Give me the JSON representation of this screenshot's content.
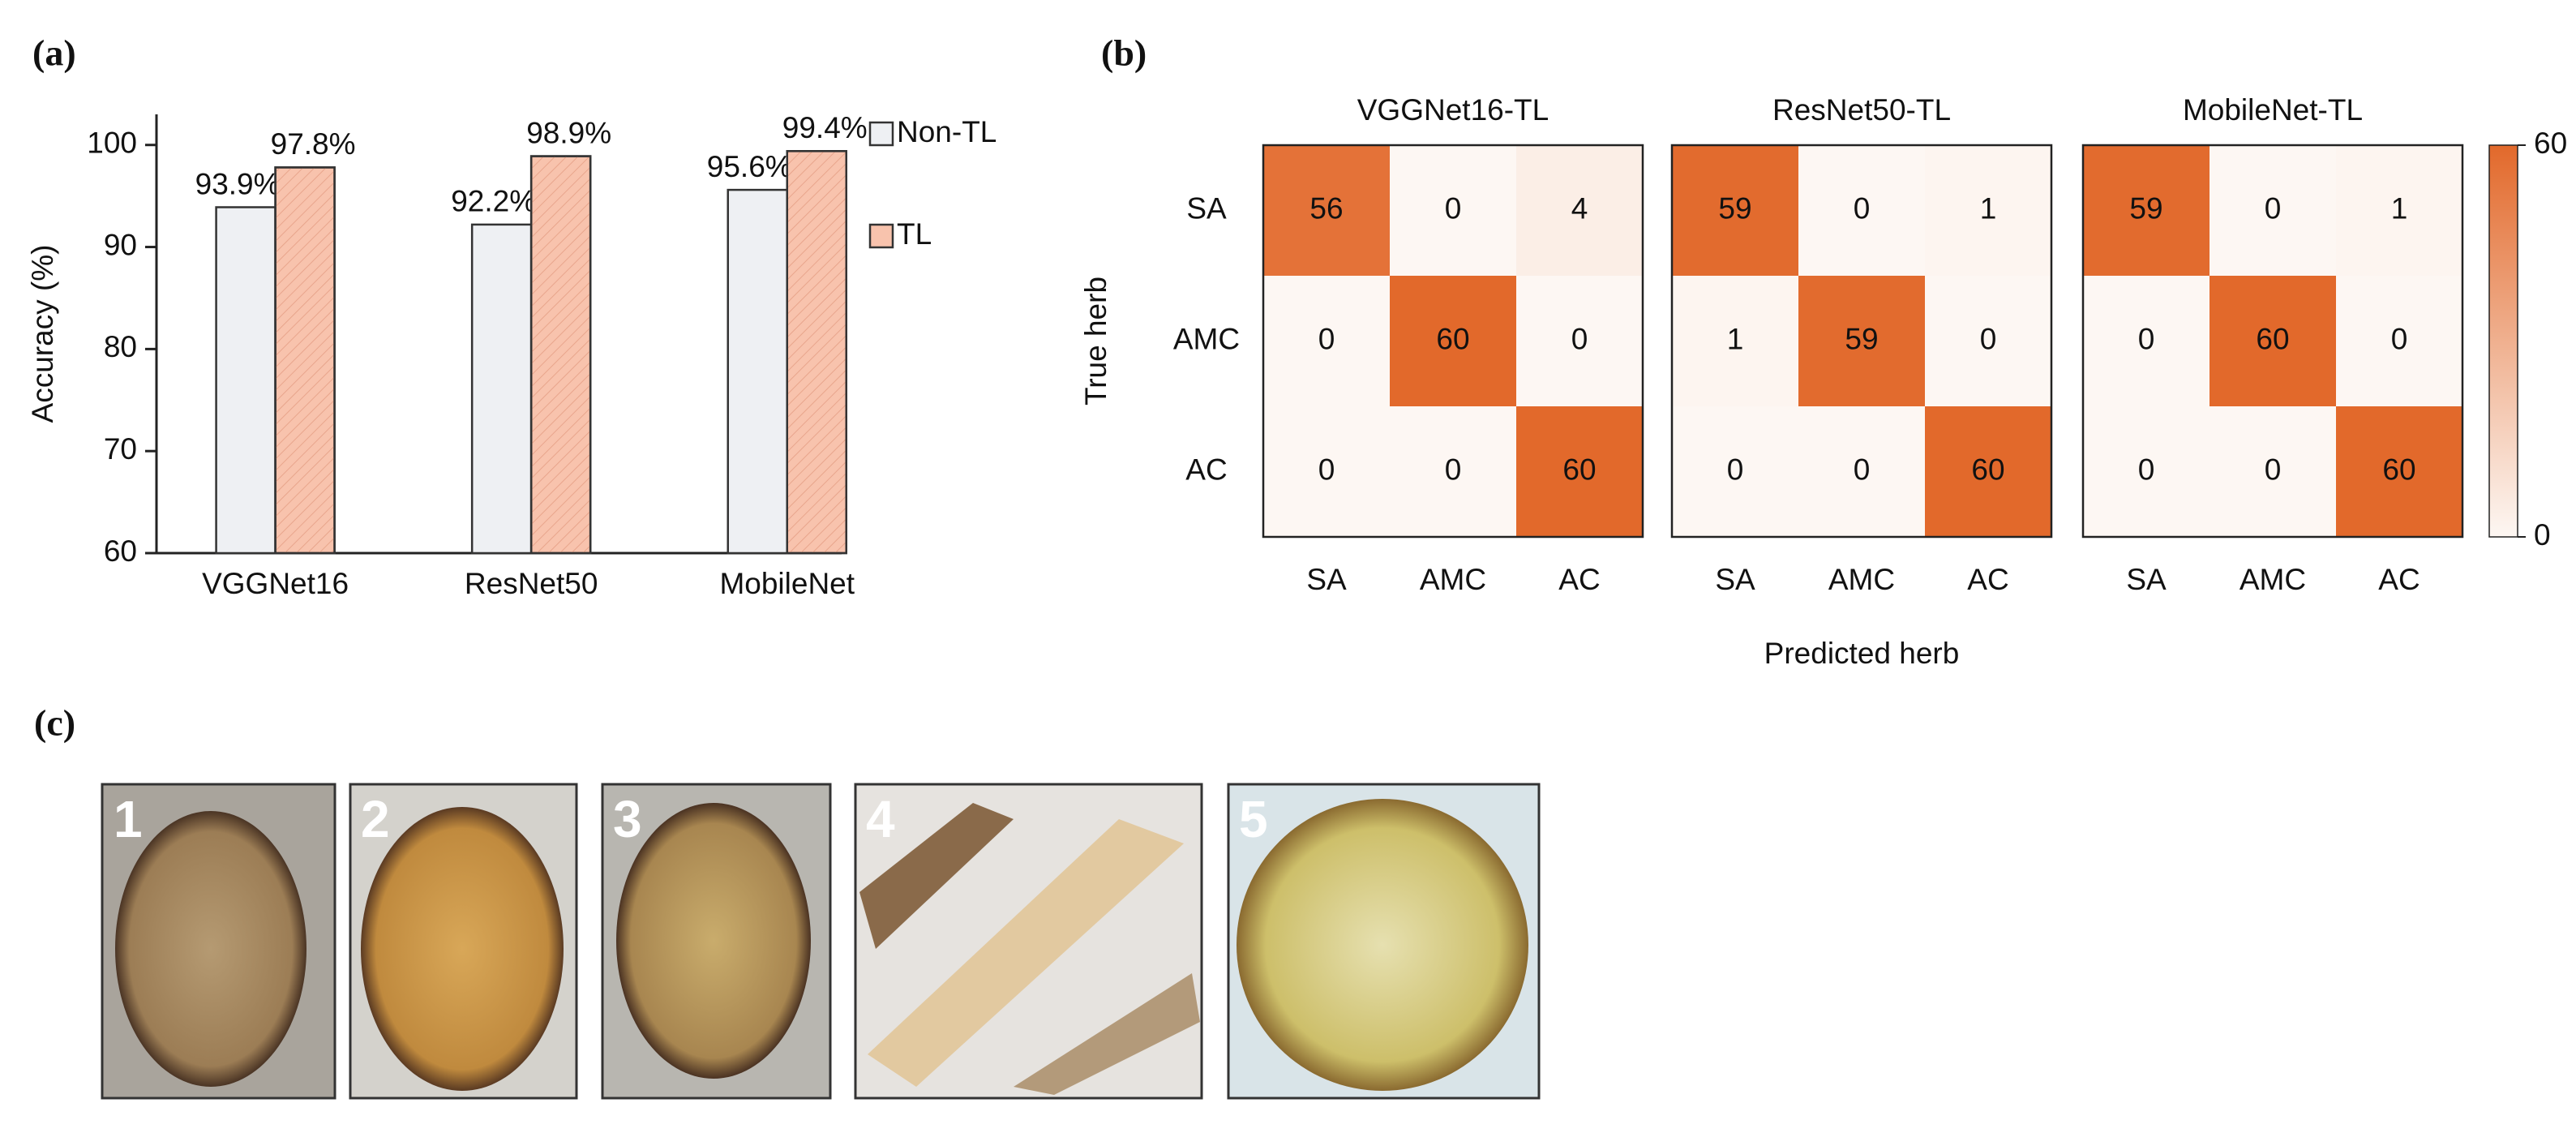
{
  "panels": {
    "a": "(a)",
    "b": "(b)",
    "c": "(c)"
  },
  "photos": [
    "1",
    "2",
    "3",
    "4",
    "5"
  ],
  "chart_data": [
    {
      "type": "bar",
      "ylabel": "Accuracy (%)",
      "categories": [
        "VGGNet16",
        "ResNet50",
        "MobileNet"
      ],
      "series": [
        {
          "name": "Non-TL",
          "color": "#eef0f3",
          "values": [
            93.9,
            92.2,
            95.6
          ],
          "value_labels": [
            "93.9%",
            "92.2%",
            "95.6%"
          ]
        },
        {
          "name": "TL",
          "color": "#f8c3ad",
          "values": [
            97.8,
            98.9,
            99.4
          ],
          "value_labels": [
            "97.8%",
            "98.9%",
            "99.4%"
          ]
        }
      ],
      "ylim": [
        60,
        103
      ],
      "yticks": [
        60,
        70,
        80,
        90,
        100
      ],
      "legend": "upper right"
    },
    {
      "type": "heatmap",
      "title": "VGGNet16-TL",
      "ylabel": "True herb",
      "x": [
        "SA",
        "AMC",
        "AC"
      ],
      "y": [
        "SA",
        "AMC",
        "AC"
      ],
      "values": [
        [
          56,
          0,
          4
        ],
        [
          0,
          60,
          0
        ],
        [
          0,
          0,
          60
        ]
      ]
    },
    {
      "type": "heatmap",
      "title": "ResNet50-TL",
      "xlabel": "Predicted herb",
      "x": [
        "SA",
        "AMC",
        "AC"
      ],
      "values": [
        [
          59,
          0,
          1
        ],
        [
          1,
          59,
          0
        ],
        [
          0,
          0,
          60
        ]
      ]
    },
    {
      "type": "heatmap",
      "title": "MobileNet-TL",
      "x": [
        "SA",
        "AMC",
        "AC"
      ],
      "values": [
        [
          59,
          0,
          1
        ],
        [
          0,
          60,
          0
        ],
        [
          0,
          0,
          60
        ]
      ],
      "colorbar": {
        "lim": [
          0,
          60
        ],
        "ticks": [
          0,
          60
        ],
        "colors": [
          "#fdf7f3",
          "#e2692b"
        ]
      }
    }
  ]
}
